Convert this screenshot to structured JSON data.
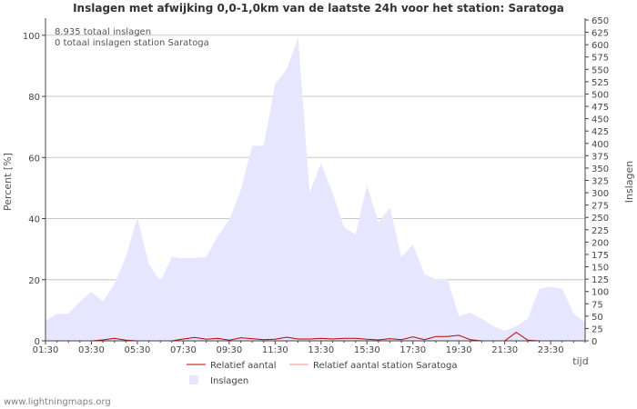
{
  "chart_data": {
    "type": "area",
    "title": "Inslagen met afwijking 0,0-1,0km van de laatste 24h voor het station: Saratoga",
    "xlabel": "tijd",
    "ylabel_left": "Percent   [%]",
    "ylabel_right": "Inslagen",
    "ylim_left": [
      0,
      105
    ],
    "ylim_right": [
      0,
      650
    ],
    "yticks_left": [
      0,
      20,
      40,
      60,
      80,
      100
    ],
    "yticks_right": [
      0,
      25,
      50,
      75,
      100,
      125,
      150,
      175,
      200,
      225,
      250,
      275,
      300,
      325,
      350,
      375,
      400,
      425,
      450,
      475,
      500,
      525,
      550,
      575,
      600,
      625,
      650
    ],
    "x_tick_labels": [
      "01:30",
      "03:30",
      "05:30",
      "07:30",
      "09:30",
      "11:30",
      "13:30",
      "15:30",
      "17:30",
      "19:30",
      "21:30",
      "23:30"
    ],
    "annotations": [
      "8.935 totaal inslagen",
      "0 totaal inslagen station Saratoga"
    ],
    "x_hours": [
      1.5,
      2,
      2.5,
      3,
      3.5,
      4,
      4.5,
      5,
      5.5,
      6,
      6.5,
      7,
      7.5,
      8,
      8.5,
      9,
      9.5,
      10,
      10.5,
      11,
      11.5,
      12,
      12.5,
      13,
      13.5,
      14,
      14.5,
      15,
      15.5,
      16,
      16.5,
      17,
      17.5,
      18,
      18.5,
      19,
      19.5,
      20,
      20.5,
      21,
      21.5,
      22,
      22.5,
      23,
      23.5,
      24,
      24.5,
      25
    ],
    "series": [
      {
        "name": "Inslagen",
        "axis": "right",
        "color": "#e6e6ff",
        "values": [
          40,
          55,
          55,
          80,
          100,
          80,
          115,
          170,
          250,
          155,
          120,
          170,
          167,
          168,
          170,
          212,
          245,
          305,
          395,
          395,
          520,
          550,
          615,
          300,
          360,
          300,
          230,
          215,
          315,
          240,
          270,
          170,
          195,
          135,
          125,
          125,
          50,
          57,
          45,
          30,
          20,
          30,
          45,
          105,
          110,
          105,
          55,
          38
        ]
      },
      {
        "name": "Relatief aantal",
        "axis": "left",
        "color": "#c00000",
        "values": [
          0,
          0,
          0,
          0,
          0,
          0.3,
          0.8,
          0.2,
          0,
          0,
          0,
          0,
          0.6,
          1.1,
          0.5,
          0.8,
          0.2,
          1.0,
          0.7,
          0.4,
          0.5,
          1.2,
          0.6,
          0.6,
          0.8,
          0.6,
          0.8,
          0.8,
          0.5,
          0.3,
          0.7,
          0.4,
          1.3,
          0.4,
          1.4,
          1.4,
          1.8,
          0.4,
          0,
          0,
          0,
          2.8,
          0.2,
          0,
          0,
          0,
          0,
          0
        ]
      },
      {
        "name": "Relatief aantal station Saratoga",
        "axis": "left",
        "color": "#ff8080",
        "values": [
          0,
          0,
          0,
          0,
          0,
          0,
          0,
          0,
          0,
          0,
          0,
          0,
          0,
          0,
          0,
          0,
          0,
          0,
          0,
          0,
          0,
          0,
          0,
          0,
          0,
          0,
          0,
          0,
          0,
          0,
          0,
          0,
          0,
          0,
          0,
          0,
          0,
          0,
          0,
          0,
          0,
          0,
          0,
          0,
          0,
          0,
          0,
          0
        ]
      }
    ],
    "legend": [
      {
        "label": "Relatief aantal",
        "kind": "line",
        "color": "#c00000"
      },
      {
        "label": "Relatief aantal station Saratoga",
        "kind": "line",
        "color": "#ff9090"
      },
      {
        "label": "Inslagen",
        "kind": "box",
        "color": "#e6e6ff"
      }
    ],
    "grid": true
  },
  "footer": "www.lightningmaps.org"
}
